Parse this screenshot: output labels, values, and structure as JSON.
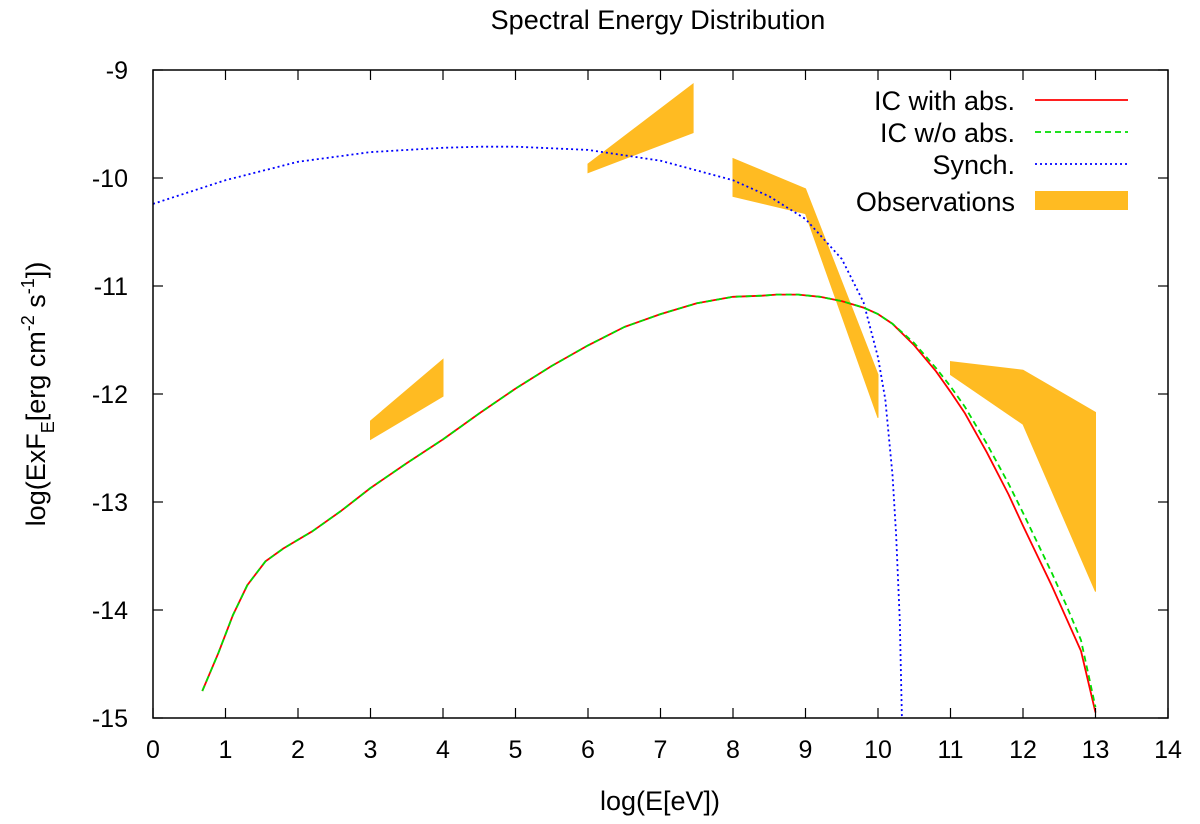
{
  "chart_data": {
    "type": "line",
    "title": "Spectral Energy Distribution",
    "xlabel": "log(E[eV])",
    "ylabel": {
      "part1": "log(ExF",
      "sub1": "E",
      "part2": "[erg cm",
      "sup1": "-2",
      "part3": " s",
      "sup2": "-1",
      "part4": "])"
    },
    "xlim": [
      0,
      14
    ],
    "ylim": [
      -15,
      -9
    ],
    "xticks": [
      "0",
      "1",
      "2",
      "3",
      "4",
      "5",
      "6",
      "7",
      "8",
      "9",
      "10",
      "11",
      "12",
      "13",
      "14"
    ],
    "yticks": [
      "-9",
      "-10",
      "-11",
      "-12",
      "-13",
      "-14",
      "-15"
    ],
    "grid": false,
    "legend_position": "top-right",
    "colors": {
      "ic_abs": "#ff0000",
      "ic_noabs": "#00dd00",
      "synch": "#0000ff",
      "observations": "#ffbb22"
    },
    "series": [
      {
        "name": "IC with abs.",
        "style": "solid",
        "x": [
          0.68,
          0.9,
          1.1,
          1.3,
          1.55,
          1.8,
          2.2,
          2.6,
          3.0,
          3.5,
          4.0,
          4.5,
          5.0,
          5.5,
          6.0,
          6.5,
          7.0,
          7.5,
          8.0,
          8.4,
          8.6,
          8.9,
          9.2,
          9.5,
          9.8,
          10.0,
          10.2,
          10.5,
          10.8,
          11.0,
          11.2,
          11.5,
          11.8,
          12.0,
          12.2,
          12.4,
          12.6,
          12.8,
          13.0
        ],
        "y": [
          -14.75,
          -14.4,
          -14.05,
          -13.77,
          -13.55,
          -13.43,
          -13.27,
          -13.08,
          -12.87,
          -12.64,
          -12.42,
          -12.18,
          -11.95,
          -11.74,
          -11.55,
          -11.38,
          -11.26,
          -11.16,
          -11.1,
          -11.09,
          -11.08,
          -11.08,
          -11.1,
          -11.14,
          -11.2,
          -11.26,
          -11.35,
          -11.55,
          -11.79,
          -11.98,
          -12.18,
          -12.54,
          -12.93,
          -13.22,
          -13.5,
          -13.78,
          -14.08,
          -14.38,
          -14.95
        ]
      },
      {
        "name": "IC w/o abs.",
        "style": "dashed",
        "x": [
          0.68,
          0.9,
          1.1,
          1.3,
          1.55,
          1.8,
          2.2,
          2.6,
          3.0,
          3.5,
          4.0,
          4.5,
          5.0,
          5.5,
          6.0,
          6.5,
          7.0,
          7.5,
          8.0,
          8.4,
          8.6,
          8.9,
          9.2,
          9.5,
          9.8,
          10.0,
          10.2,
          10.5,
          10.8,
          11.0,
          11.2,
          11.5,
          11.8,
          12.0,
          12.2,
          12.4,
          12.6,
          12.8,
          13.0
        ],
        "y": [
          -14.75,
          -14.4,
          -14.05,
          -13.77,
          -13.55,
          -13.43,
          -13.27,
          -13.08,
          -12.87,
          -12.64,
          -12.42,
          -12.18,
          -11.95,
          -11.74,
          -11.55,
          -11.38,
          -11.26,
          -11.16,
          -11.1,
          -11.09,
          -11.08,
          -11.08,
          -11.1,
          -11.14,
          -11.2,
          -11.26,
          -11.35,
          -11.53,
          -11.76,
          -11.93,
          -12.12,
          -12.46,
          -12.83,
          -13.1,
          -13.38,
          -13.66,
          -13.96,
          -14.28,
          -14.9
        ]
      },
      {
        "name": "Synch.",
        "style": "dotted",
        "x": [
          0,
          1,
          2,
          3,
          4,
          4.5,
          5,
          6,
          7,
          8,
          8.5,
          9,
          9.5,
          9.8,
          10.0,
          10.1,
          10.2,
          10.25,
          10.3,
          10.33
        ],
        "y": [
          -10.24,
          -10.02,
          -9.85,
          -9.76,
          -9.72,
          -9.71,
          -9.71,
          -9.74,
          -9.84,
          -10.02,
          -10.17,
          -10.38,
          -10.75,
          -11.15,
          -11.66,
          -12.05,
          -12.75,
          -13.3,
          -14.1,
          -15.0
        ]
      }
    ],
    "observations": {
      "name": "Observations",
      "bands": [
        {
          "x": [
            3.0,
            4.0
          ],
          "upper": [
            -12.25,
            -11.68
          ],
          "lower": [
            -12.42,
            -12.02
          ]
        },
        {
          "x": [
            6.0,
            7.45
          ],
          "upper": [
            -9.87,
            -9.13
          ],
          "lower": [
            -9.95,
            -9.58
          ]
        },
        {
          "x": [
            8.0,
            9.0
          ],
          "upper": [
            -9.82,
            -10.1
          ],
          "lower": [
            -10.17,
            -10.33
          ]
        },
        {
          "x": [
            9.0,
            10.0
          ],
          "upper": [
            -10.1,
            -11.82
          ],
          "lower": [
            -10.33,
            -12.22
          ]
        },
        {
          "x": [
            11.0,
            12.0,
            13.0
          ],
          "upper": [
            -11.7,
            -11.78,
            -12.17
          ],
          "lower": [
            -11.82,
            -12.28,
            -13.83
          ]
        }
      ]
    }
  }
}
